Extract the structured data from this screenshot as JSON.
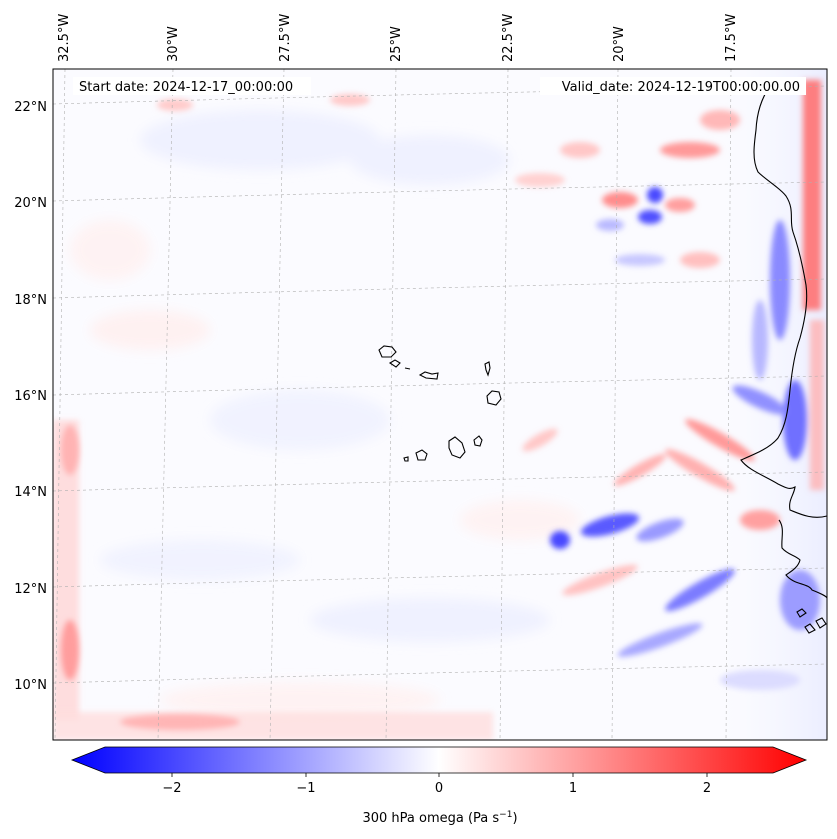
{
  "map": {
    "start_label": "Start date: 2024-12-17_00:00:00",
    "valid_label": "Valid_date: 2024-12-19T00:00:00.00",
    "lon_labels": [
      "32.5°W",
      "30°W",
      "27.5°W",
      "25°W",
      "22.5°W",
      "20°W",
      "17.5°W"
    ],
    "lat_labels": [
      "22°N",
      "20°N",
      "18°N",
      "16°N",
      "14°N",
      "12°N",
      "10°N"
    ],
    "coastline_color": "#000000",
    "gridline_color": "#b0b0b0"
  },
  "colorbar": {
    "ticks": [
      "−2",
      "−1",
      "0",
      "1",
      "2"
    ],
    "label": "300 hPa omega (Pa s",
    "label_sup": "−1",
    "label_close": ")",
    "cmap_low": "#0000ff",
    "cmap_mid": "#ffffff",
    "cmap_high": "#ff0000"
  }
}
